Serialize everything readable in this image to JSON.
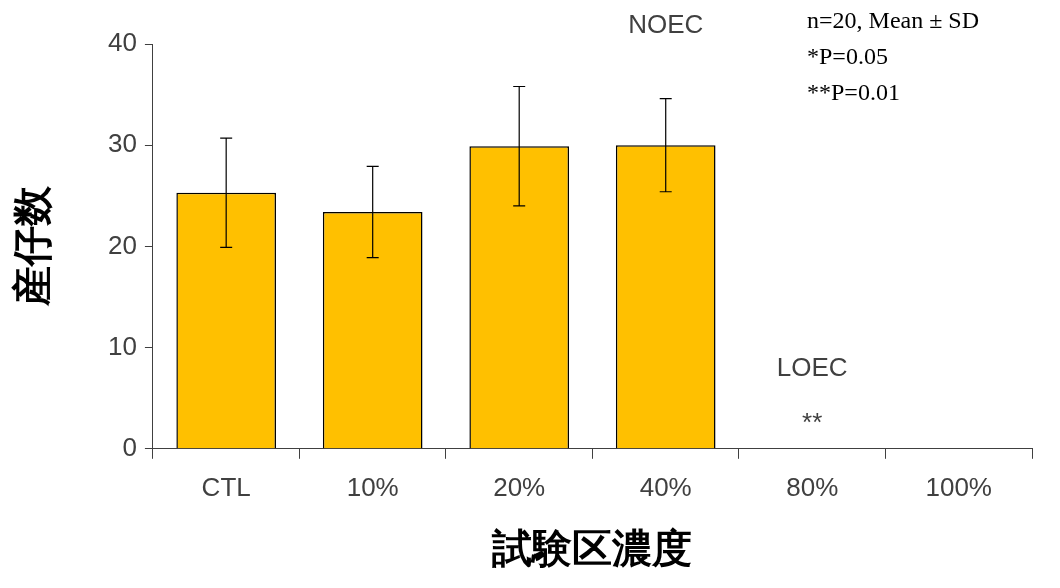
{
  "chart_data": {
    "type": "bar",
    "categories": [
      "CTL",
      "10%",
      "20%",
      "40%",
      "80%",
      "100%"
    ],
    "values": [
      25.3,
      23.4,
      29.9,
      30.0,
      0,
      0
    ],
    "errors": [
      5.4,
      4.5,
      5.9,
      4.6,
      null,
      null
    ],
    "color": "#ffc000",
    "xlabel": "試験区濃度",
    "ylabel": "産仔数",
    "ylim": [
      0,
      40
    ],
    "yticks": [
      0,
      10,
      20,
      30,
      40
    ],
    "grid": false,
    "legend": false,
    "annotations": [
      "NOEC",
      "LOEC",
      "**",
      "n=20, Mean ± SD",
      "*P=0.05",
      "**P=0.01"
    ]
  }
}
